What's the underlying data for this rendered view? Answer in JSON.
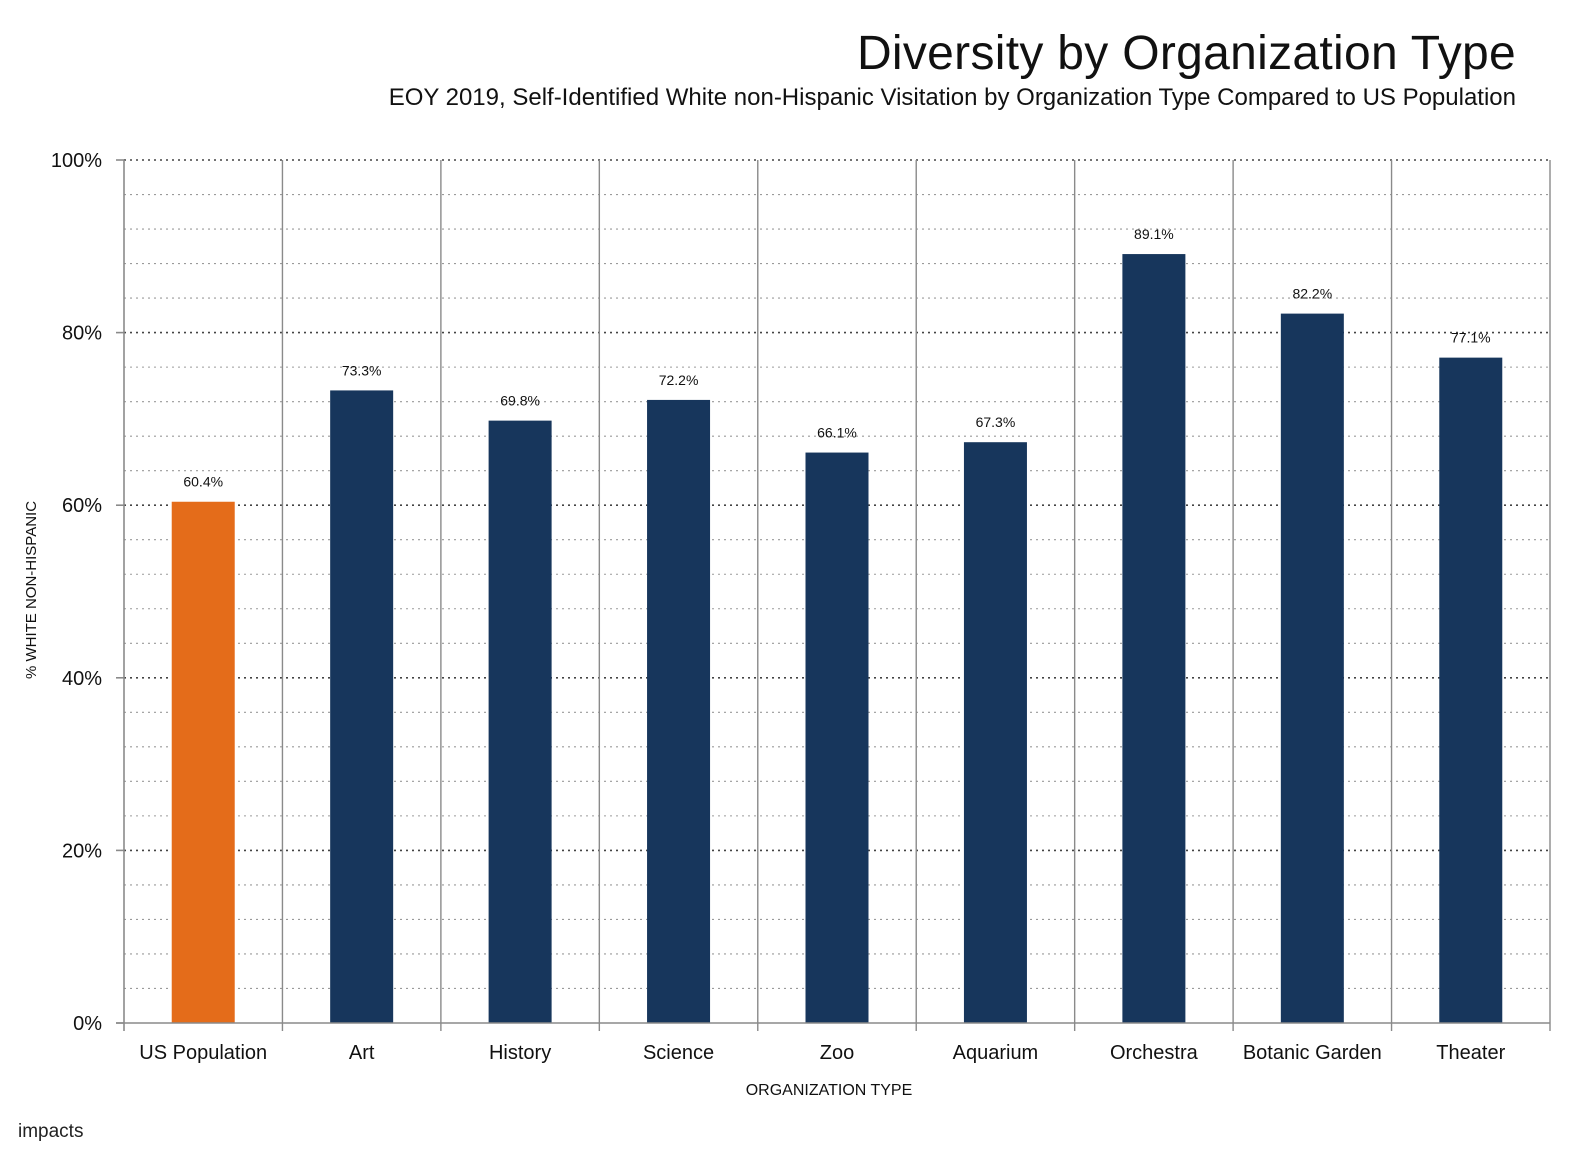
{
  "chart_data": {
    "type": "bar",
    "title": "Diversity by Organization Type",
    "subtitle": "EOY 2019, Self-Identified White non-Hispanic Visitation by Organization Type Compared to US Population",
    "xlabel": "ORGANIZATION TYPE",
    "ylabel": "% WHITE NON-HISPANIC",
    "categories": [
      "US Population",
      "Art",
      "History",
      "Science",
      "Zoo",
      "Aquarium",
      "Orchestra",
      "Botanic Garden",
      "Theater"
    ],
    "values": [
      60.4,
      73.3,
      69.8,
      72.2,
      66.1,
      67.3,
      89.1,
      82.2,
      77.1
    ],
    "value_labels": [
      "60.4%",
      "73.3%",
      "69.8%",
      "72.2%",
      "66.1%",
      "67.3%",
      "89.1%",
      "82.2%",
      "77.1%"
    ],
    "ylim": [
      0,
      100
    ],
    "yticks": [
      0,
      20,
      40,
      60,
      80,
      100
    ],
    "ytick_labels": [
      "0%",
      "20%",
      "40%",
      "60%",
      "80%",
      "100%"
    ],
    "grid": true,
    "legend": "none",
    "colors": {
      "highlight": "#E46C1A",
      "bars": "#17365C",
      "grid": "#555555",
      "axis": "#888888"
    }
  },
  "brand": {
    "logo_text": "impacts"
  }
}
